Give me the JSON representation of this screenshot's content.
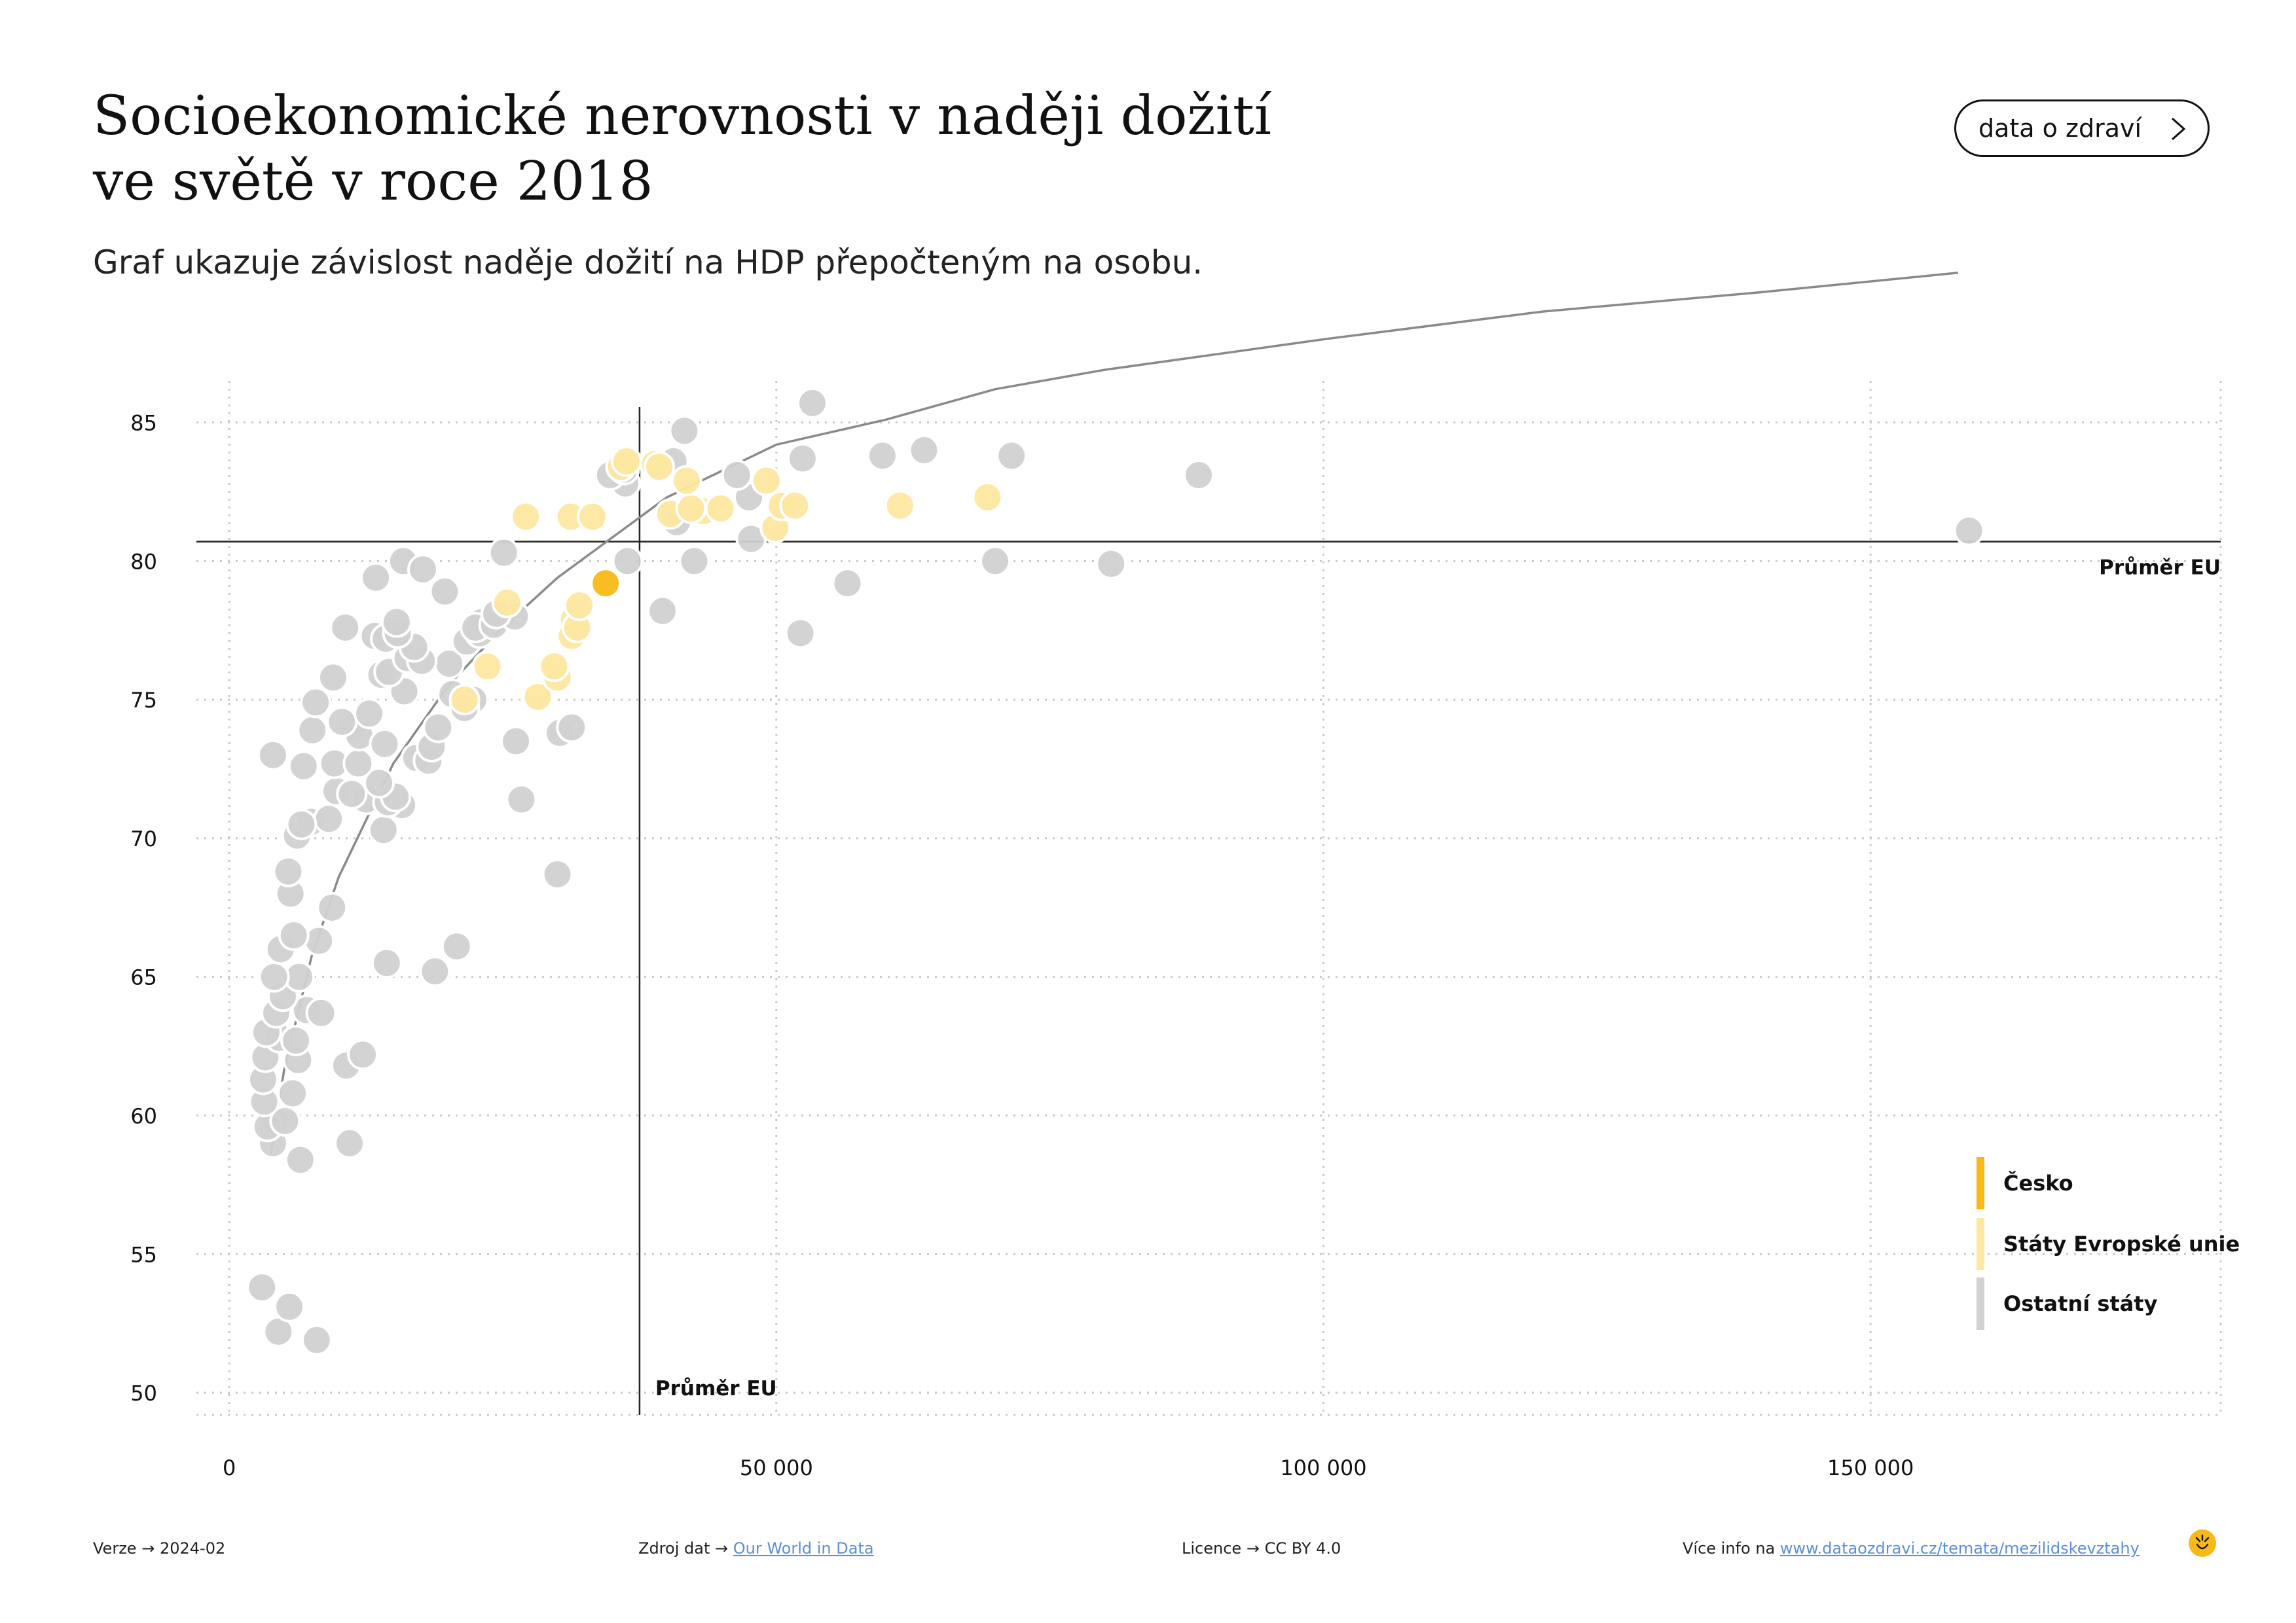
{
  "header": {
    "title_line1": "Socioekonomické nerovnosti v naději dožití",
    "title_line2": "ve světě v roce 2018",
    "subtitle": "Graf ukazuje závislost naděje dožití na HDP přepočteným na osobu.",
    "nav_button_label": "data o zdraví"
  },
  "footer": {
    "version_label": "Verze",
    "version_value": "2024-02",
    "source_label": "Zdroj dat",
    "source_value": "Our World in Data",
    "license_label": "Licence",
    "license_value": "CC BY 4.0",
    "more_label": "Více info na",
    "more_value": "www.dataozdravi.cz/temata/mezilidskevztahy",
    "arrow": "→"
  },
  "colors": {
    "czech": "#f8b916",
    "eu": "#fde8a0",
    "other": "#d1d1d1",
    "grid": "#c8c8c8",
    "axis_line": "#222222",
    "trend": "#8a8a8a"
  },
  "chart_data": {
    "type": "scatter",
    "xlim": [
      -3000,
      182000
    ],
    "ylim": [
      49.2,
      86.5
    ],
    "x_ticks": [
      0,
      50000,
      100000,
      150000
    ],
    "x_tick_labels": [
      "0",
      "50 000",
      "100 000",
      "150 000"
    ],
    "y_ticks": [
      50,
      55,
      60,
      65,
      70,
      75,
      80,
      85
    ],
    "y_tick_labels": [
      "50",
      "55",
      "60",
      "65",
      "70",
      "75",
      "80",
      "85"
    ],
    "grid": true,
    "reference_lines": {
      "eu_avg_x": 37500,
      "eu_avg_y": 80.7,
      "x_label": "Průměr EU",
      "y_label": "Průměr EU"
    },
    "trend_line": {
      "type": "logarithmic",
      "x_start": 3800,
      "x_end": 158000,
      "points": [
        [
          3800,
          58.6
        ],
        [
          5000,
          61.6
        ],
        [
          7500,
          65.7
        ],
        [
          10000,
          68.6
        ],
        [
          15000,
          72.7
        ],
        [
          20000,
          75.5
        ],
        [
          25000,
          77.6
        ],
        [
          30000,
          79.4
        ],
        [
          40000,
          82.3
        ],
        [
          50000,
          84.2
        ],
        [
          60000,
          85.1
        ],
        [
          70000,
          86.2
        ],
        [
          80000,
          86.9
        ],
        [
          100000,
          88.0
        ],
        [
          120000,
          89.0
        ],
        [
          140000,
          89.7
        ],
        [
          158000,
          90.4
        ]
      ]
    },
    "legend": {
      "placement": "bottom-right",
      "entries": [
        {
          "key": "czech",
          "label": "Česko"
        },
        {
          "key": "eu",
          "label": "Státy Evropské unie"
        },
        {
          "key": "other",
          "label": "Ostatní státy"
        }
      ]
    },
    "series": [
      {
        "key": "other",
        "points": [
          [
            3000,
            53.8
          ],
          [
            4500,
            52.2
          ],
          [
            5500,
            53.1
          ],
          [
            8000,
            51.9
          ],
          [
            4000,
            59.0
          ],
          [
            6500,
            58.4
          ],
          [
            11000,
            59.0
          ],
          [
            4200,
            59.8
          ],
          [
            3500,
            59.6
          ],
          [
            5100,
            59.8
          ],
          [
            3200,
            60.5
          ],
          [
            5800,
            60.8
          ],
          [
            3100,
            61.3
          ],
          [
            6300,
            62.0
          ],
          [
            10700,
            61.8
          ],
          [
            12200,
            62.2
          ],
          [
            3300,
            62.1
          ],
          [
            4600,
            62.8
          ],
          [
            6100,
            62.7
          ],
          [
            3400,
            63.0
          ],
          [
            4300,
            63.7
          ],
          [
            7100,
            63.8
          ],
          [
            8400,
            63.7
          ],
          [
            4900,
            64.3
          ],
          [
            6400,
            65.0
          ],
          [
            4100,
            65.0
          ],
          [
            14400,
            65.5
          ],
          [
            18800,
            65.2
          ],
          [
            20800,
            66.1
          ],
          [
            8200,
            66.3
          ],
          [
            4700,
            66.0
          ],
          [
            5900,
            66.5
          ],
          [
            5600,
            68.0
          ],
          [
            9400,
            67.5
          ],
          [
            5400,
            68.8
          ],
          [
            30000,
            68.7
          ],
          [
            6200,
            70.1
          ],
          [
            7500,
            70.6
          ],
          [
            9100,
            70.7
          ],
          [
            6600,
            70.5
          ],
          [
            12500,
            71.4
          ],
          [
            14100,
            70.3
          ],
          [
            15800,
            71.2
          ],
          [
            26700,
            71.4
          ],
          [
            9800,
            71.7
          ],
          [
            11200,
            71.6
          ],
          [
            14500,
            71.3
          ],
          [
            15200,
            71.5
          ],
          [
            13700,
            72.0
          ],
          [
            4000,
            73.0
          ],
          [
            6800,
            72.6
          ],
          [
            9600,
            72.7
          ],
          [
            11800,
            72.7
          ],
          [
            17100,
            72.9
          ],
          [
            18200,
            72.8
          ],
          [
            7600,
            73.9
          ],
          [
            11300,
            74.0
          ],
          [
            11900,
            73.7
          ],
          [
            14200,
            73.4
          ],
          [
            18500,
            73.3
          ],
          [
            26200,
            73.5
          ],
          [
            30200,
            73.8
          ],
          [
            31300,
            74.0
          ],
          [
            7900,
            74.9
          ],
          [
            10300,
            74.2
          ],
          [
            12800,
            74.5
          ],
          [
            16000,
            75.3
          ],
          [
            19100,
            74.0
          ],
          [
            20400,
            75.2
          ],
          [
            22300,
            75.0
          ],
          [
            21500,
            74.7
          ],
          [
            9500,
            75.8
          ],
          [
            13900,
            75.9
          ],
          [
            14600,
            76.0
          ],
          [
            16300,
            76.5
          ],
          [
            20100,
            76.3
          ],
          [
            17600,
            76.4
          ],
          [
            13300,
            77.3
          ],
          [
            14300,
            77.2
          ],
          [
            16900,
            76.9
          ],
          [
            15400,
            77.4
          ],
          [
            21700,
            77.1
          ],
          [
            22900,
            77.4
          ],
          [
            23100,
            77.8
          ],
          [
            10600,
            77.6
          ],
          [
            15300,
            77.8
          ],
          [
            22500,
            77.6
          ],
          [
            24200,
            77.7
          ],
          [
            26100,
            78.0
          ],
          [
            39600,
            78.2
          ],
          [
            24400,
            78.1
          ],
          [
            13400,
            79.4
          ],
          [
            15900,
            80.0
          ],
          [
            17700,
            79.7
          ],
          [
            19700,
            78.9
          ],
          [
            25100,
            80.3
          ],
          [
            36400,
            80.0
          ],
          [
            42500,
            80.0
          ],
          [
            56500,
            79.2
          ],
          [
            52200,
            77.4
          ],
          [
            70000,
            80.0
          ],
          [
            80600,
            79.9
          ],
          [
            159000,
            81.1
          ],
          [
            36200,
            82.8
          ],
          [
            40900,
            81.4
          ],
          [
            47700,
            80.8
          ],
          [
            47500,
            82.3
          ],
          [
            34800,
            83.1
          ],
          [
            46400,
            83.1
          ],
          [
            40600,
            83.6
          ],
          [
            52400,
            83.7
          ],
          [
            59700,
            83.8
          ],
          [
            88600,
            83.1
          ],
          [
            63500,
            84.0
          ],
          [
            71500,
            83.8
          ],
          [
            41600,
            84.7
          ],
          [
            53300,
            85.7
          ],
          [
            36100,
            83.3
          ]
        ]
      },
      {
        "key": "eu",
        "points": [
          [
            21500,
            75.0
          ],
          [
            28200,
            75.1
          ],
          [
            30000,
            75.8
          ],
          [
            29700,
            76.2
          ],
          [
            23600,
            76.2
          ],
          [
            31300,
            77.3
          ],
          [
            31500,
            77.9
          ],
          [
            31800,
            77.6
          ],
          [
            32000,
            78.4
          ],
          [
            25400,
            78.5
          ],
          [
            27100,
            81.6
          ],
          [
            31200,
            81.6
          ],
          [
            33200,
            81.6
          ],
          [
            40300,
            81.7
          ],
          [
            43300,
            81.8
          ],
          [
            42200,
            81.9
          ],
          [
            44900,
            81.9
          ],
          [
            49900,
            81.2
          ],
          [
            50500,
            82.0
          ],
          [
            51700,
            82.0
          ],
          [
            61300,
            82.0
          ],
          [
            69300,
            82.3
          ],
          [
            41800,
            82.9
          ],
          [
            49100,
            82.9
          ],
          [
            35800,
            83.4
          ],
          [
            36300,
            83.6
          ],
          [
            38900,
            83.5
          ],
          [
            39300,
            83.4
          ]
        ]
      },
      {
        "key": "czech",
        "points": [
          [
            34400,
            79.2
          ]
        ]
      }
    ]
  }
}
